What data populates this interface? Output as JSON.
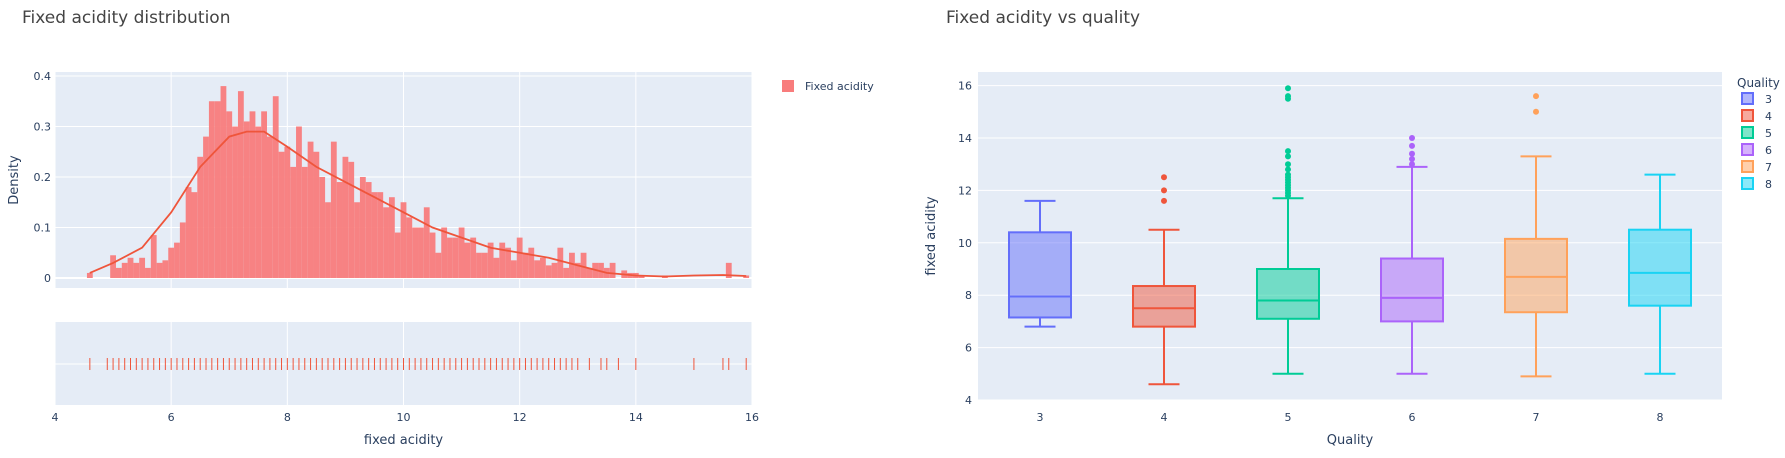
{
  "chart_data": [
    {
      "type": "histogram",
      "title": "Fixed acidity distribution",
      "xlabel": "fixed acidity",
      "ylabel": "Density",
      "xlim": [
        4,
        16
      ],
      "ylim": [
        0,
        0.4
      ],
      "x_ticks": [
        "4",
        "6",
        "8",
        "10",
        "12",
        "14",
        "16"
      ],
      "y_ticks": [
        "0",
        "0.1",
        "0.2",
        "0.3",
        "0.4"
      ],
      "legend": {
        "position": "top-right",
        "items": [
          "Fixed acidity"
        ]
      },
      "bin_width": 0.1,
      "bins_x": [
        4.6,
        4.7,
        4.8,
        4.9,
        5.0,
        5.1,
        5.2,
        5.3,
        5.4,
        5.5,
        5.6,
        5.7,
        5.8,
        5.9,
        6.0,
        6.1,
        6.2,
        6.3,
        6.4,
        6.5,
        6.6,
        6.7,
        6.8,
        6.9,
        7.0,
        7.1,
        7.2,
        7.3,
        7.4,
        7.5,
        7.6,
        7.7,
        7.8,
        7.9,
        8.0,
        8.1,
        8.2,
        8.3,
        8.4,
        8.5,
        8.6,
        8.7,
        8.8,
        8.9,
        9.0,
        9.1,
        9.2,
        9.3,
        9.4,
        9.5,
        9.6,
        9.7,
        9.8,
        9.9,
        10.0,
        10.1,
        10.2,
        10.3,
        10.4,
        10.5,
        10.6,
        10.7,
        10.8,
        10.9,
        11.0,
        11.1,
        11.2,
        11.3,
        11.4,
        11.5,
        11.6,
        11.7,
        11.8,
        11.9,
        12.0,
        12.1,
        12.2,
        12.3,
        12.4,
        12.5,
        12.6,
        12.7,
        12.8,
        12.9,
        13.0,
        13.1,
        13.2,
        13.3,
        13.4,
        13.5,
        13.6,
        13.7,
        13.8,
        13.9,
        14.0,
        14.1,
        14.2,
        14.3,
        14.4,
        14.5,
        14.6,
        14.7,
        14.8,
        14.9,
        15.0,
        15.1,
        15.2,
        15.3,
        15.4,
        15.5,
        15.6,
        15.7,
        15.8,
        15.9
      ],
      "density": [
        0.01,
        0,
        0,
        0,
        0.045,
        0.02,
        0.03,
        0.04,
        0.03,
        0.04,
        0.02,
        0.085,
        0.03,
        0.035,
        0.06,
        0.07,
        0.11,
        0.18,
        0.17,
        0.24,
        0.28,
        0.35,
        0.35,
        0.38,
        0.33,
        0.3,
        0.37,
        0.31,
        0.33,
        0.3,
        0.33,
        0.28,
        0.36,
        0.25,
        0.26,
        0.22,
        0.3,
        0.22,
        0.27,
        0.25,
        0.2,
        0.15,
        0.27,
        0.19,
        0.24,
        0.23,
        0.15,
        0.2,
        0.19,
        0.17,
        0.17,
        0.14,
        0.16,
        0.09,
        0.15,
        0.12,
        0.1,
        0.1,
        0.14,
        0.09,
        0.05,
        0.1,
        0.08,
        0.08,
        0.1,
        0.07,
        0.08,
        0.05,
        0.05,
        0.07,
        0.04,
        0.07,
        0.06,
        0.035,
        0.08,
        0.05,
        0.06,
        0.035,
        0.04,
        0.025,
        0.03,
        0.06,
        0.02,
        0.05,
        0.03,
        0.05,
        0.02,
        0.03,
        0.03,
        0.02,
        0.03,
        0,
        0.015,
        0.01,
        0.01,
        0.005,
        0,
        0,
        0,
        0.005,
        0,
        0,
        0,
        0,
        0,
        0,
        0,
        0,
        0,
        0,
        0.03,
        0,
        0,
        0.005
      ],
      "kde": [
        [
          4.6,
          0.01
        ],
        [
          5.0,
          0.03
        ],
        [
          5.5,
          0.06
        ],
        [
          6.0,
          0.13
        ],
        [
          6.5,
          0.22
        ],
        [
          7.0,
          0.28
        ],
        [
          7.3,
          0.29
        ],
        [
          7.6,
          0.29
        ],
        [
          8.0,
          0.26
        ],
        [
          8.5,
          0.22
        ],
        [
          9.0,
          0.19
        ],
        [
          9.5,
          0.16
        ],
        [
          10.0,
          0.13
        ],
        [
          10.5,
          0.1
        ],
        [
          11.0,
          0.08
        ],
        [
          11.5,
          0.06
        ],
        [
          12.0,
          0.05
        ],
        [
          12.5,
          0.04
        ],
        [
          13.0,
          0.025
        ],
        [
          13.5,
          0.01
        ],
        [
          14.0,
          0.005
        ],
        [
          14.5,
          0.003
        ],
        [
          15.0,
          0.005
        ],
        [
          15.5,
          0.006
        ],
        [
          15.9,
          0.004
        ]
      ],
      "rug_x": [
        4.6,
        4.9,
        5.0,
        5.1,
        5.2,
        5.3,
        5.4,
        5.5,
        5.6,
        5.7,
        5.8,
        5.9,
        6.0,
        6.1,
        6.2,
        6.3,
        6.4,
        6.5,
        6.6,
        6.7,
        6.8,
        6.9,
        7.0,
        7.1,
        7.2,
        7.3,
        7.4,
        7.5,
        7.6,
        7.7,
        7.8,
        7.9,
        8.0,
        8.1,
        8.2,
        8.3,
        8.4,
        8.5,
        8.6,
        8.7,
        8.8,
        8.9,
        9.0,
        9.1,
        9.2,
        9.3,
        9.4,
        9.5,
        9.6,
        9.7,
        9.8,
        9.9,
        10.0,
        10.1,
        10.2,
        10.3,
        10.4,
        10.5,
        10.6,
        10.7,
        10.8,
        10.9,
        11.0,
        11.1,
        11.2,
        11.3,
        11.4,
        11.5,
        11.6,
        11.7,
        11.8,
        11.9,
        12.0,
        12.1,
        12.2,
        12.3,
        12.4,
        12.5,
        12.6,
        12.7,
        12.8,
        12.9,
        13.0,
        13.2,
        13.4,
        13.5,
        13.7,
        14.0,
        15.0,
        15.5,
        15.6,
        15.9
      ],
      "colors": {
        "bars": "#f87c7c",
        "line": "#ef553b",
        "plot_bg": "#e5ecf6"
      }
    },
    {
      "type": "box",
      "title": "Fixed acidity vs quality",
      "xlabel": "Quality",
      "ylabel": "fixed acidity",
      "ylim": [
        4,
        16.5
      ],
      "y_ticks": [
        "4",
        "6",
        "8",
        "10",
        "12",
        "14",
        "16"
      ],
      "legend": {
        "title": "Quality",
        "position": "top-right"
      },
      "series": [
        {
          "name": "3",
          "min": 6.8,
          "q1": 7.15,
          "median": 7.95,
          "q3": 10.4,
          "max": 11.6,
          "outliers": [],
          "color": "#636efa"
        },
        {
          "name": "4",
          "min": 4.6,
          "q1": 6.8,
          "median": 7.5,
          "q3": 8.35,
          "max": 10.5,
          "outliers": [
            11.6,
            12.0,
            12.5
          ],
          "color": "#ef553b"
        },
        {
          "name": "5",
          "min": 5.0,
          "q1": 7.1,
          "median": 7.8,
          "q3": 9.0,
          "max": 11.7,
          "outliers": [
            11.8,
            11.9,
            12.0,
            12.1,
            12.2,
            12.3,
            12.4,
            12.5,
            12.6,
            12.8,
            13.0,
            13.3,
            13.5,
            15.5,
            15.6,
            15.9
          ],
          "color": "#00cc96"
        },
        {
          "name": "6",
          "min": 5.0,
          "q1": 7.0,
          "median": 7.9,
          "q3": 9.4,
          "max": 12.9,
          "outliers": [
            13.0,
            13.2,
            13.4,
            13.7,
            14.0
          ],
          "color": "#ab63fa"
        },
        {
          "name": "7",
          "min": 4.9,
          "q1": 7.35,
          "median": 8.7,
          "q3": 10.15,
          "max": 13.3,
          "outliers": [
            15.0,
            15.6
          ],
          "color": "#ffa15a"
        },
        {
          "name": "8",
          "min": 5.0,
          "q1": 7.6,
          "median": 8.85,
          "q3": 10.5,
          "max": 12.6,
          "outliers": [],
          "color": "#19d3f3"
        }
      ],
      "colors": {
        "plot_bg": "#e5ecf6"
      }
    }
  ]
}
